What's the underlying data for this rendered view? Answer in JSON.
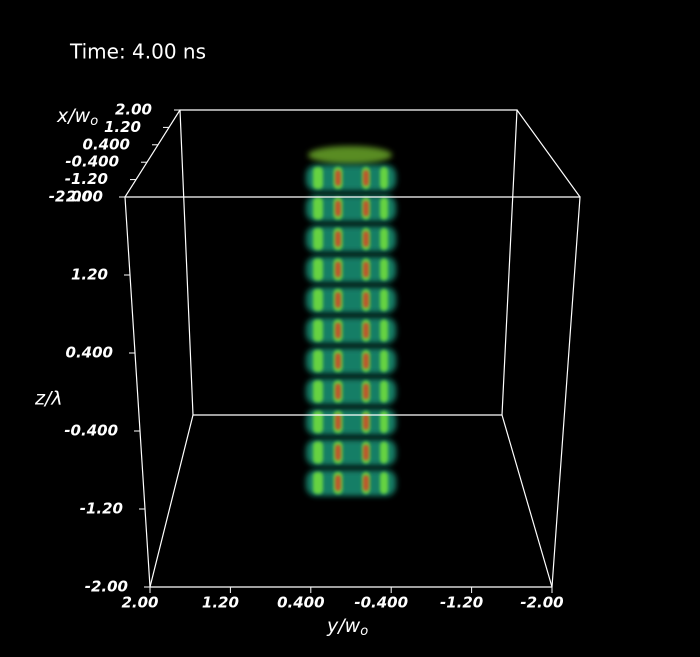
{
  "title": "Time: 4.00 ns",
  "axes": {
    "x": {
      "label": "x/w",
      "label_sub": "o",
      "ticks": [
        "2.00",
        "1.20",
        "0.400",
        "-0.400",
        "-1.20",
        "-2.00"
      ]
    },
    "y": {
      "label": "y/w",
      "label_sub": "o",
      "ticks": [
        "2.00",
        "1.20",
        "0.400",
        "-0.400",
        "-1.20",
        "-2.00"
      ]
    },
    "z": {
      "label": "z/λ",
      "ticks": [
        "2.00",
        "1.20",
        "0.400",
        "-0.400",
        "-1.20",
        "-2.00"
      ]
    }
  }
}
